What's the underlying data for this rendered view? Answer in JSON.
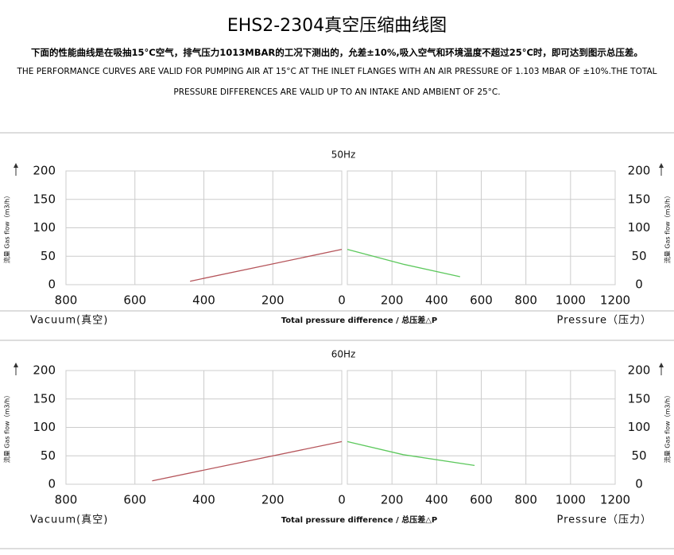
{
  "header": {
    "title": "EHS2-2304真空压缩曲线图",
    "subtitle": "下面的性能曲线是在吸抽15°C空气，排气压力1013MBAR的工况下测出的，允差±10%,吸入空气和环境温度不超过25°C时，即可达到图示总压差。",
    "note_lines": [
      "THE PERFORMANCE CURVES ARE VALID FOR PUMPING AIR AT 15°C AT THE INLET FLANGES WITH AN AIR PRESSURE OF 1.103 MBAR OF ±10%.THE TOTAL",
      "PRESSURE DIFFERENCES ARE VALID UP TO AN INTAKE AND AMBIENT OF 25°C."
    ]
  },
  "chart_data": [
    {
      "type": "line",
      "title": "50Hz",
      "ylabel": "流量 Gas flow（m3/h）",
      "xlabel_left": "Vacuum(真空)",
      "xlabel": "Total pressure difference / 总压差△P",
      "xlabel_right": "Pressure（压力）",
      "xlim": [
        800,
        0
      ],
      "xticks": [
        800,
        600,
        400,
        200,
        0
      ],
      "x2lim": [
        0,
        1200
      ],
      "x2ticks": [
        200,
        400,
        600,
        800,
        1000,
        1200
      ],
      "ylim": [
        0,
        200
      ],
      "yticks": [
        0,
        50,
        100,
        150,
        200
      ],
      "grid": true,
      "series": [
        {
          "color": "#b5545a",
          "x": [
            440,
            0
          ],
          "values": [
            6,
            62
          ]
        },
        {
          "color": "#5cc85c",
          "axis": "x2",
          "x": [
            0,
            250,
            505
          ],
          "values": [
            62,
            36,
            14
          ]
        }
      ]
    },
    {
      "type": "line",
      "title": "60Hz",
      "ylabel": "流量 Gas flow（m3/h）",
      "xlabel_left": "Vacuum(真空)",
      "xlabel": "Total pressure difference / 总压差△P",
      "xlabel_right": "Pressure（压力）",
      "xlim": [
        800,
        0
      ],
      "xticks": [
        800,
        600,
        400,
        200,
        0
      ],
      "x2lim": [
        0,
        1200
      ],
      "x2ticks": [
        200,
        400,
        600,
        800,
        1000,
        1200
      ],
      "ylim": [
        0,
        200
      ],
      "yticks": [
        0,
        50,
        100,
        150,
        200
      ],
      "grid": true,
      "series": [
        {
          "color": "#b5545a",
          "x": [
            550,
            0
          ],
          "values": [
            6,
            75
          ]
        },
        {
          "color": "#5cc85c",
          "axis": "x2",
          "x": [
            0,
            250,
            570
          ],
          "values": [
            75,
            52,
            33
          ]
        }
      ]
    }
  ]
}
